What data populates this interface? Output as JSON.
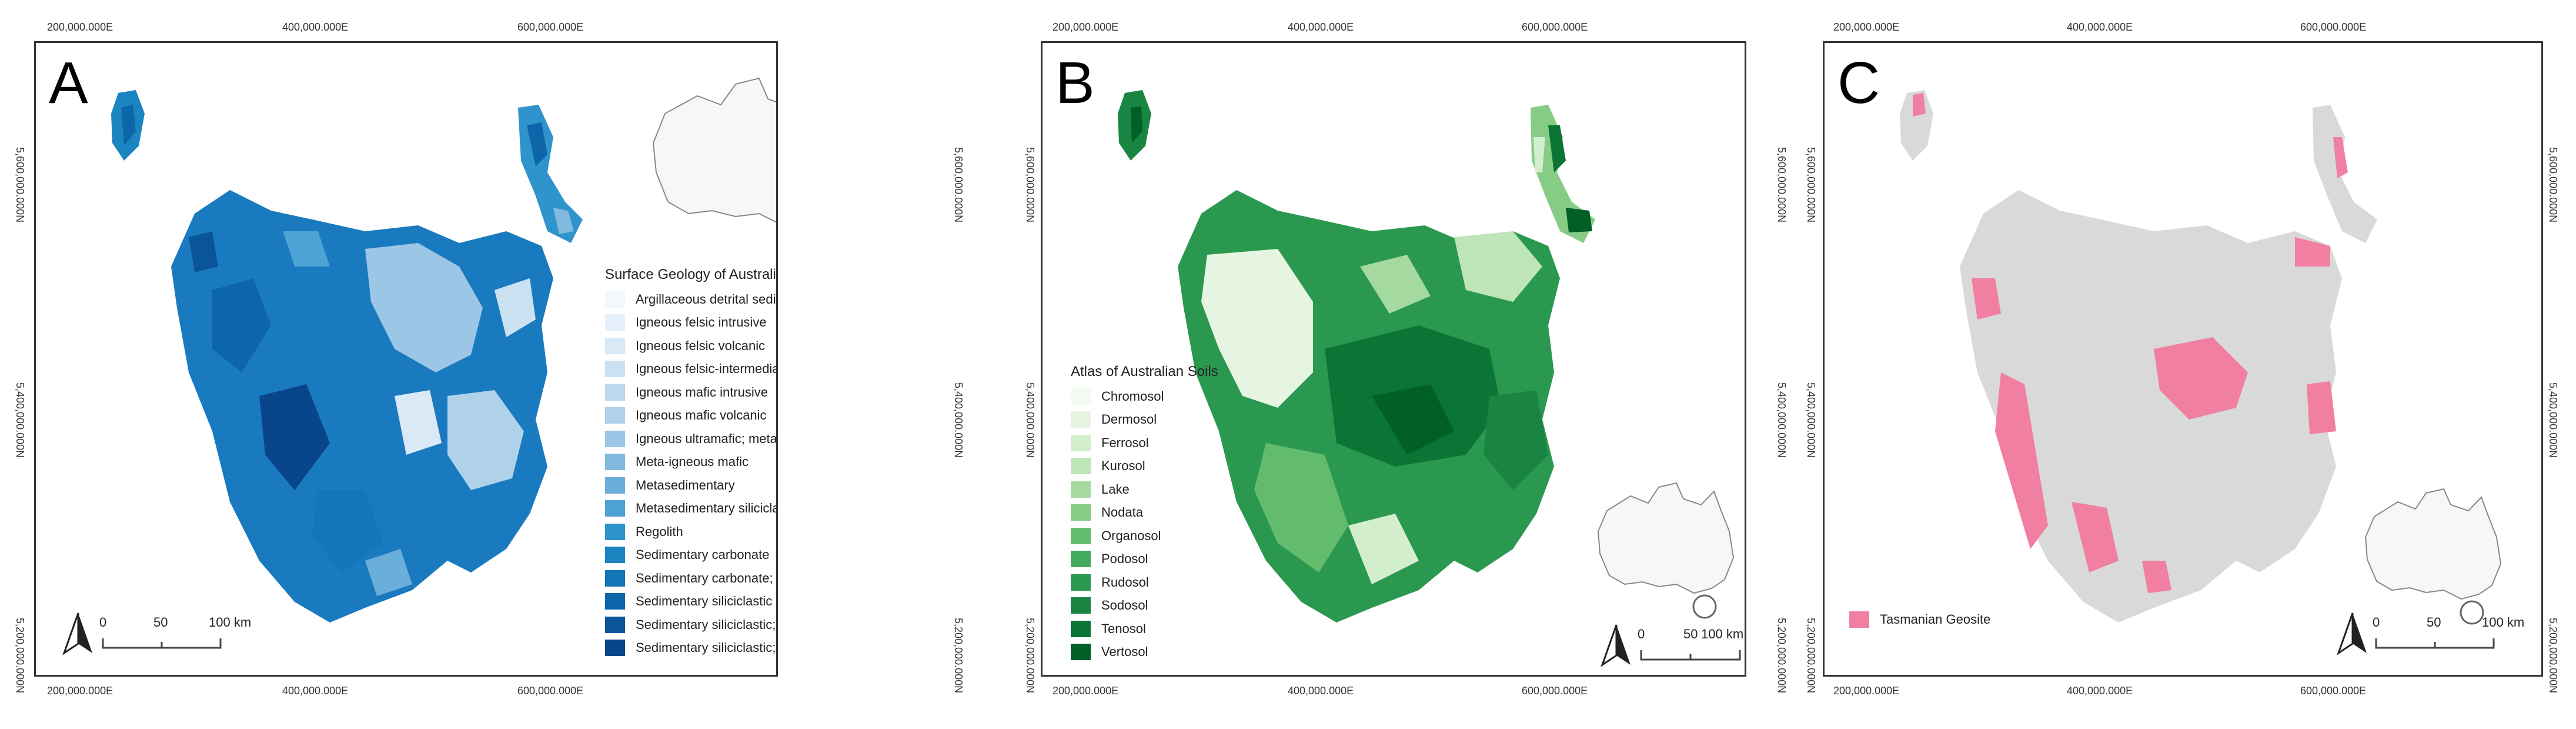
{
  "panels": [
    {
      "label": "A",
      "legend": {
        "title": "Surface Geology of Australia (Lithology)",
        "items": [
          {
            "label": "Argillaceous detrital sediment; Igneous mafic volcanic",
            "color": "#f3f8fd"
          },
          {
            "label": "Igneous felsic intrusive",
            "color": "#e5f0fa"
          },
          {
            "label": "Igneous felsic volcanic",
            "color": "#d9e9f6"
          },
          {
            "label": "Igneous felsic-intermediate volcanic",
            "color": "#cbe1f2"
          },
          {
            "label": "Igneous mafic intrusive",
            "color": "#bed9ee"
          },
          {
            "label": "Igneous mafic volcanic",
            "color": "#b0d1ea"
          },
          {
            "label": "Igneous ultramafic; meta-igneous ultramafic",
            "color": "#9bc6e5"
          },
          {
            "label": "Meta-igneous mafic",
            "color": "#82b9df"
          },
          {
            "label": "Metasedimentary",
            "color": "#6aaedb"
          },
          {
            "label": "Metasedimentary siliciclastic",
            "color": "#4da2d6"
          },
          {
            "label": "Regolith",
            "color": "#2f93cc"
          },
          {
            "label": "Sedimentary carbonate",
            "color": "#1d84c2"
          },
          {
            "label": "Sedimentary carbonate; Sedimentary siliciclastic",
            "color": "#1476b7"
          },
          {
            "label": "Sedimentary siliciclastic",
            "color": "#0d66aa"
          },
          {
            "label": "Sedimentary siliciclastic; Organic-rich rock",
            "color": "#0a559a"
          },
          {
            "label": "Sedimentary siliciclastic; Regolith",
            "color": "#08458a"
          }
        ]
      }
    },
    {
      "label": "B",
      "legend": {
        "title": "Atlas of Australian Soils",
        "items": [
          {
            "label": "Chromosol",
            "color": "#f4fbf2"
          },
          {
            "label": "Dermosol",
            "color": "#e6f5e1"
          },
          {
            "label": "Ferrosol",
            "color": "#d3eecd"
          },
          {
            "label": "Kurosol",
            "color": "#bee5b8"
          },
          {
            "label": "Lake",
            "color": "#a4da9f"
          },
          {
            "label": "Nodata",
            "color": "#86cc85"
          },
          {
            "label": "Organosol",
            "color": "#63bc6e"
          },
          {
            "label": "Podosol",
            "color": "#42ab5d"
          },
          {
            "label": "Rudosol",
            "color": "#2b984f"
          },
          {
            "label": "Sodosol",
            "color": "#1a8542"
          },
          {
            "label": "Tenosol",
            "color": "#0b7536"
          },
          {
            "label": "Vertosol",
            "color": "#006027"
          }
        ]
      }
    },
    {
      "label": "C",
      "legend": {
        "title": "",
        "items": [
          {
            "label": "Tasmanian Geosite",
            "color": "#f07fa1"
          }
        ]
      }
    }
  ],
  "coordinates": {
    "easting": [
      "200,000.000E",
      "400,000.000E",
      "600,000.000E"
    ],
    "northing": [
      "5,600,000.000N",
      "5,400,000.000N",
      "5,200,000.000N"
    ]
  },
  "scale_bar": {
    "ticks": [
      "0",
      "50",
      "100 km"
    ]
  },
  "colors": {
    "panel_a_fill": "#1a7ac0",
    "panel_b_fill": "#2f9a4f",
    "panel_c_base": "#d9d9d9",
    "panel_c_geosite": "#f07fa1",
    "inset_fill": "#f7f7f7"
  },
  "icons": [
    "north-arrow-icon",
    "australia-inset-map",
    "tasmania-locator-circle"
  ]
}
